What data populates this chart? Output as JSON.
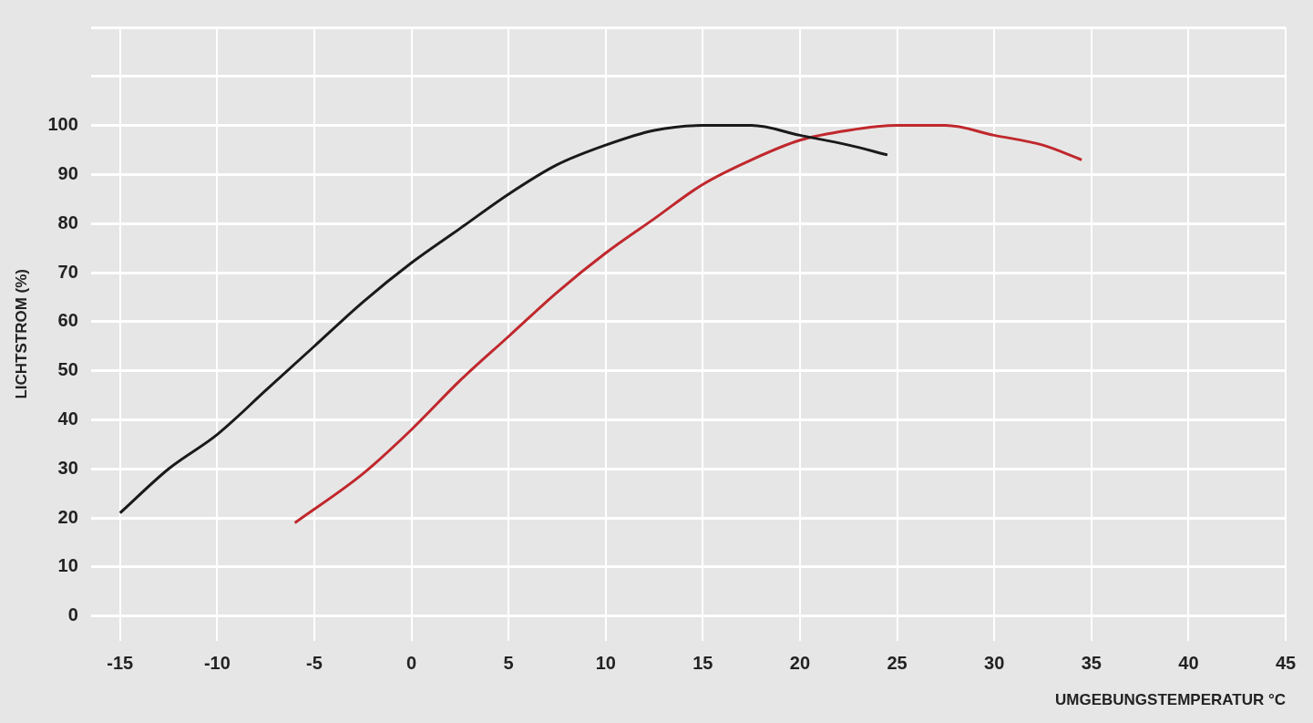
{
  "chart_data": {
    "type": "line",
    "xlabel": "UMGEBUNGSTEMPERATUR °C",
    "ylabel": "LICHTSTROM (%)",
    "xlim": [
      -16.5,
      45
    ],
    "ylim": [
      -5,
      120
    ],
    "xticks": [
      -15,
      -10,
      -5,
      0,
      5,
      10,
      15,
      20,
      25,
      30,
      35,
      40,
      45
    ],
    "yticks": [
      0,
      10,
      20,
      30,
      40,
      50,
      60,
      70,
      80,
      90,
      100,
      {
        "value": 110,
        "label": null
      },
      {
        "value": 120,
        "label": null
      }
    ],
    "grid": true,
    "marker": "none",
    "line_style": "solid",
    "series": [
      {
        "color": "#1a1a1a",
        "x": [
          -15,
          -12.5,
          -10,
          -7.5,
          -5,
          -2.5,
          0,
          2.5,
          5,
          7.5,
          10,
          12.5,
          15,
          17.5,
          20,
          22.5,
          24.5
        ],
        "values": [
          21,
          30,
          37,
          46,
          55,
          64,
          72,
          79,
          86,
          92,
          96,
          99,
          100,
          100,
          98,
          96,
          94
        ]
      },
      {
        "color": "#c0282d",
        "x": [
          -6,
          -2.5,
          0,
          2.5,
          5,
          7.5,
          10,
          12.5,
          15,
          17.5,
          20,
          22.5,
          25,
          27.5,
          30,
          32.5,
          34.5
        ],
        "values": [
          19,
          29,
          38,
          48,
          57,
          66,
          74,
          81,
          88,
          93,
          97,
          99,
          100,
          100,
          98,
          96,
          93
        ]
      }
    ]
  }
}
